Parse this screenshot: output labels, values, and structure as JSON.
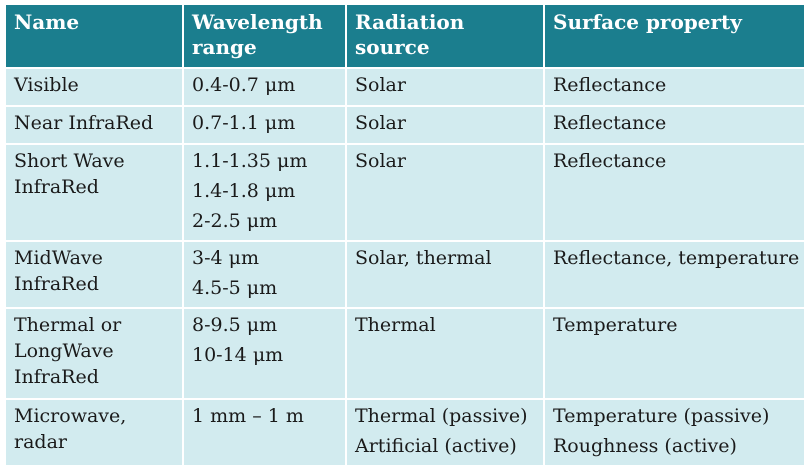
{
  "headers": {
    "name": [
      "Name"
    ],
    "wavelength": [
      "Wavelength",
      "range"
    ],
    "source": [
      "Radiation",
      "source"
    ],
    "property": [
      "Surface property"
    ]
  },
  "rows": [
    {
      "name": [
        "Visible"
      ],
      "wavelength": [
        "0.4-0.7 μm"
      ],
      "source": [
        "Solar"
      ],
      "property": [
        "Reflectance"
      ]
    },
    {
      "name": [
        "Near InfraRed"
      ],
      "wavelength": [
        "0.7-1.1 μm"
      ],
      "source": [
        "Solar"
      ],
      "property": [
        "Reflectance"
      ]
    },
    {
      "name": [
        "Short Wave",
        "InfraRed"
      ],
      "wavelength": [
        "1.1-1.35 μm",
        "1.4-1.8 μm",
        "2-2.5 μm"
      ],
      "source": [
        "Solar"
      ],
      "property": [
        "Reflectance"
      ]
    },
    {
      "name": [
        "MidWave",
        "InfraRed"
      ],
      "wavelength": [
        "3-4 μm",
        "4.5-5 μm"
      ],
      "source": [
        "Solar, thermal"
      ],
      "property": [
        "Reflectance, temperature"
      ]
    },
    {
      "name": [
        "Thermal or",
        "LongWave",
        "InfraRed"
      ],
      "wavelength": [
        "8-9.5 μm",
        "10-14 μm"
      ],
      "source": [
        "Thermal"
      ],
      "property": [
        "Temperature"
      ]
    },
    {
      "name": [
        "Microwave,",
        "radar"
      ],
      "wavelength": [
        "1 mm – 1 m"
      ],
      "source": [
        "Thermal (passive)",
        "Artificial (active)"
      ],
      "property": [
        "Temperature (passive)",
        "Roughness (active)"
      ]
    }
  ],
  "colors": {
    "header_bg": "#1b7e8e",
    "header_text": "#ffffff",
    "cell_bg": "#d2ebef",
    "cell_text": "#1a1a1a"
  }
}
